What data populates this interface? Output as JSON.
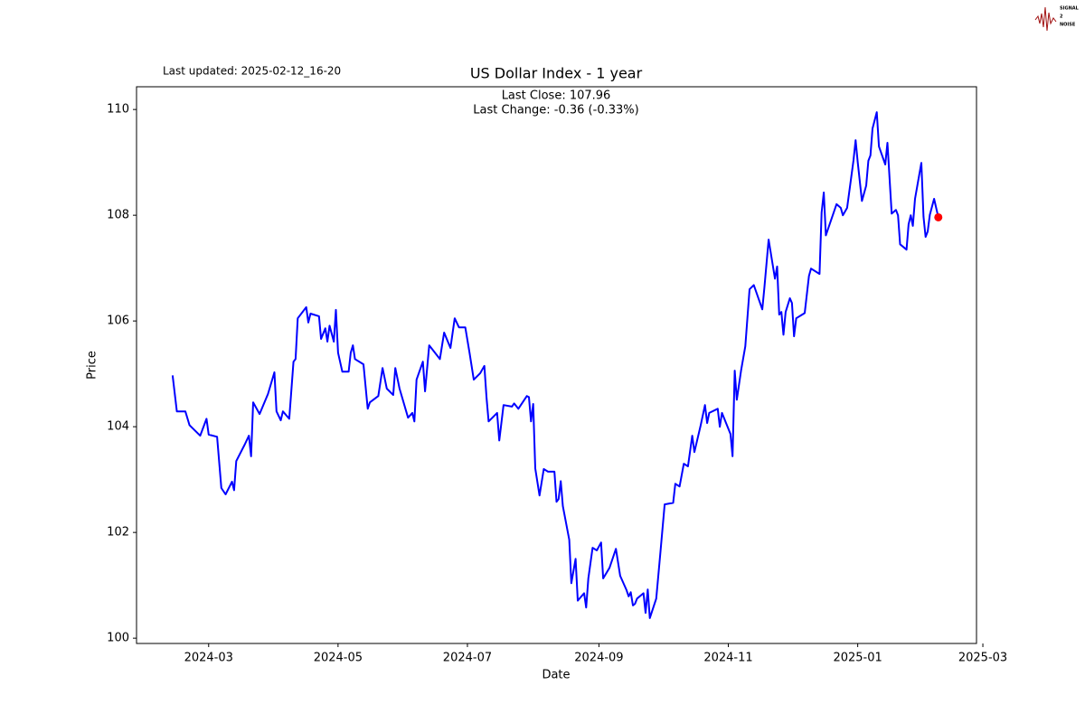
{
  "chart_data": {
    "type": "line",
    "title": "US Dollar Index - 1 year",
    "annotations": [
      "Last Close: 107.96",
      "Last Change: -0.36 (-0.33%)"
    ],
    "updated": "Last updated: 2025-02-12_16-20",
    "logo": [
      "SIGNAL",
      "2",
      "NOISE"
    ],
    "xlabel": "Date",
    "ylabel": "Price",
    "xlim": [
      "2024-01-27",
      "2025-02-26"
    ],
    "xticks": [
      "2024-03",
      "2024-05",
      "2024-07",
      "2024-09",
      "2024-11",
      "2025-01",
      "2025-03"
    ],
    "ylim": [
      99.9,
      110.43
    ],
    "yticks": [
      100,
      102,
      104,
      106,
      108,
      110
    ],
    "last_point_color": "red",
    "series": [
      {
        "name": "US Dollar Index",
        "color": "blue",
        "x": [
          "2024-02-13",
          "2024-02-15",
          "2024-02-19",
          "2024-02-21",
          "2024-02-26",
          "2024-02-29",
          "2024-03-01",
          "2024-03-05",
          "2024-03-07",
          "2024-03-09",
          "2024-03-12",
          "2024-03-13",
          "2024-03-14",
          "2024-03-18",
          "2024-03-20",
          "2024-03-21",
          "2024-03-22",
          "2024-03-25",
          "2024-03-29",
          "2024-04-01",
          "2024-04-02",
          "2024-04-04",
          "2024-04-05",
          "2024-04-08",
          "2024-04-10",
          "2024-04-11",
          "2024-04-12",
          "2024-04-16",
          "2024-04-17",
          "2024-04-18",
          "2024-04-22",
          "2024-04-23",
          "2024-04-25",
          "2024-04-26",
          "2024-04-27",
          "2024-04-29",
          "2024-04-30",
          "2024-05-01",
          "2024-05-03",
          "2024-05-06",
          "2024-05-07",
          "2024-05-08",
          "2024-05-09",
          "2024-05-13",
          "2024-05-15",
          "2024-05-16",
          "2024-05-20",
          "2024-05-22",
          "2024-05-24",
          "2024-05-27",
          "2024-05-28",
          "2024-05-30",
          "2024-06-03",
          "2024-06-05",
          "2024-06-06",
          "2024-06-07",
          "2024-06-10",
          "2024-06-11",
          "2024-06-13",
          "2024-06-18",
          "2024-06-20",
          "2024-06-23",
          "2024-06-25",
          "2024-06-27",
          "2024-06-30",
          "2024-07-02",
          "2024-07-04",
          "2024-07-07",
          "2024-07-09",
          "2024-07-10",
          "2024-07-11",
          "2024-07-15",
          "2024-07-16",
          "2024-07-18",
          "2024-07-22",
          "2024-07-23",
          "2024-07-25",
          "2024-07-29",
          "2024-07-30",
          "2024-07-31",
          "2024-08-01",
          "2024-08-02",
          "2024-08-04",
          "2024-08-06",
          "2024-08-08",
          "2024-08-11",
          "2024-08-12",
          "2024-08-13",
          "2024-08-14",
          "2024-08-15",
          "2024-08-18",
          "2024-08-19",
          "2024-08-21",
          "2024-08-22",
          "2024-08-25",
          "2024-08-26",
          "2024-08-27",
          "2024-08-29",
          "2024-08-31",
          "2024-09-02",
          "2024-09-03",
          "2024-09-06",
          "2024-09-09",
          "2024-09-11",
          "2024-09-14",
          "2024-09-15",
          "2024-09-16",
          "2024-09-17",
          "2024-09-18",
          "2024-09-19",
          "2024-09-22",
          "2024-09-23",
          "2024-09-24",
          "2024-09-25",
          "2024-09-28",
          "2024-09-30",
          "2024-10-02",
          "2024-10-06",
          "2024-10-07",
          "2024-10-09",
          "2024-10-11",
          "2024-10-13",
          "2024-10-15",
          "2024-10-16",
          "2024-10-19",
          "2024-10-21",
          "2024-10-22",
          "2024-10-23",
          "2024-10-27",
          "2024-10-28",
          "2024-10-29",
          "2024-11-02",
          "2024-11-03",
          "2024-11-04",
          "2024-11-05",
          "2024-11-07",
          "2024-11-09",
          "2024-11-11",
          "2024-11-13",
          "2024-11-17",
          "2024-11-18",
          "2024-11-20",
          "2024-11-23",
          "2024-11-24",
          "2024-11-25",
          "2024-11-26",
          "2024-11-27",
          "2024-11-28",
          "2024-11-30",
          "2024-12-01",
          "2024-12-02",
          "2024-12-03",
          "2024-12-07",
          "2024-12-09",
          "2024-12-10",
          "2024-12-14",
          "2024-12-15",
          "2024-12-16",
          "2024-12-17",
          "2024-12-22",
          "2024-12-24",
          "2024-12-25",
          "2024-12-27",
          "2024-12-30",
          "2024-12-31",
          "2025-01-01",
          "2025-01-03",
          "2025-01-05",
          "2025-01-06",
          "2025-01-07",
          "2025-01-08",
          "2025-01-10",
          "2025-01-11",
          "2025-01-14",
          "2025-01-15",
          "2025-01-17",
          "2025-01-19",
          "2025-01-20",
          "2025-01-21",
          "2025-01-24",
          "2025-01-25",
          "2025-01-26",
          "2025-01-27",
          "2025-01-28",
          "2025-01-31",
          "2025-02-01",
          "2025-02-02",
          "2025-02-03",
          "2025-02-04",
          "2025-02-06",
          "2025-02-08"
        ],
        "values": [
          104.97,
          104.29,
          104.29,
          104.03,
          103.83,
          104.15,
          103.85,
          103.81,
          102.84,
          102.72,
          102.96,
          102.8,
          103.35,
          103.66,
          103.83,
          103.44,
          104.46,
          104.24,
          104.62,
          105.03,
          104.29,
          104.12,
          104.29,
          104.15,
          105.23,
          105.28,
          106.05,
          106.26,
          105.97,
          106.14,
          106.09,
          105.66,
          105.86,
          105.61,
          105.91,
          105.61,
          106.21,
          105.4,
          105.04,
          105.04,
          105.4,
          105.54,
          105.28,
          105.18,
          104.34,
          104.46,
          104.58,
          105.11,
          104.72,
          104.6,
          105.11,
          104.72,
          104.17,
          104.26,
          104.1,
          104.89,
          105.23,
          104.67,
          105.54,
          105.28,
          105.78,
          105.49,
          106.05,
          105.88,
          105.88,
          105.4,
          104.89,
          105.01,
          105.15,
          104.55,
          104.1,
          104.26,
          103.74,
          104.41,
          104.38,
          104.44,
          104.34,
          104.58,
          104.56,
          104.1,
          104.43,
          103.21,
          102.7,
          103.2,
          103.15,
          103.15,
          102.58,
          102.63,
          102.97,
          102.5,
          101.86,
          101.04,
          101.5,
          100.71,
          100.85,
          100.58,
          101.13,
          101.71,
          101.66,
          101.81,
          101.13,
          101.33,
          101.69,
          101.18,
          100.91,
          100.79,
          100.87,
          100.62,
          100.65,
          100.75,
          100.85,
          100.48,
          100.92,
          100.38,
          100.75,
          101.64,
          102.53,
          102.56,
          102.92,
          102.87,
          103.3,
          103.25,
          103.83,
          103.52,
          104.03,
          104.41,
          104.07,
          104.26,
          104.34,
          104.0,
          104.26,
          103.86,
          103.44,
          105.06,
          104.51,
          105.06,
          105.52,
          106.6,
          106.68,
          106.22,
          106.63,
          107.54,
          106.8,
          107.03,
          106.12,
          106.17,
          105.74,
          106.17,
          106.43,
          106.34,
          105.71,
          106.05,
          106.15,
          106.85,
          106.99,
          106.89,
          108.05,
          108.43,
          107.62,
          108.21,
          108.14,
          108.0,
          108.14,
          109.03,
          109.42,
          109.01,
          108.27,
          108.56,
          109.03,
          109.13,
          109.64,
          109.95,
          109.3,
          108.96,
          109.37,
          108.03,
          108.1,
          108.0,
          107.45,
          107.35,
          107.83,
          108.0,
          107.8,
          108.31,
          108.99,
          107.97,
          107.59,
          107.69,
          108.01,
          108.31,
          107.96
        ]
      }
    ]
  }
}
